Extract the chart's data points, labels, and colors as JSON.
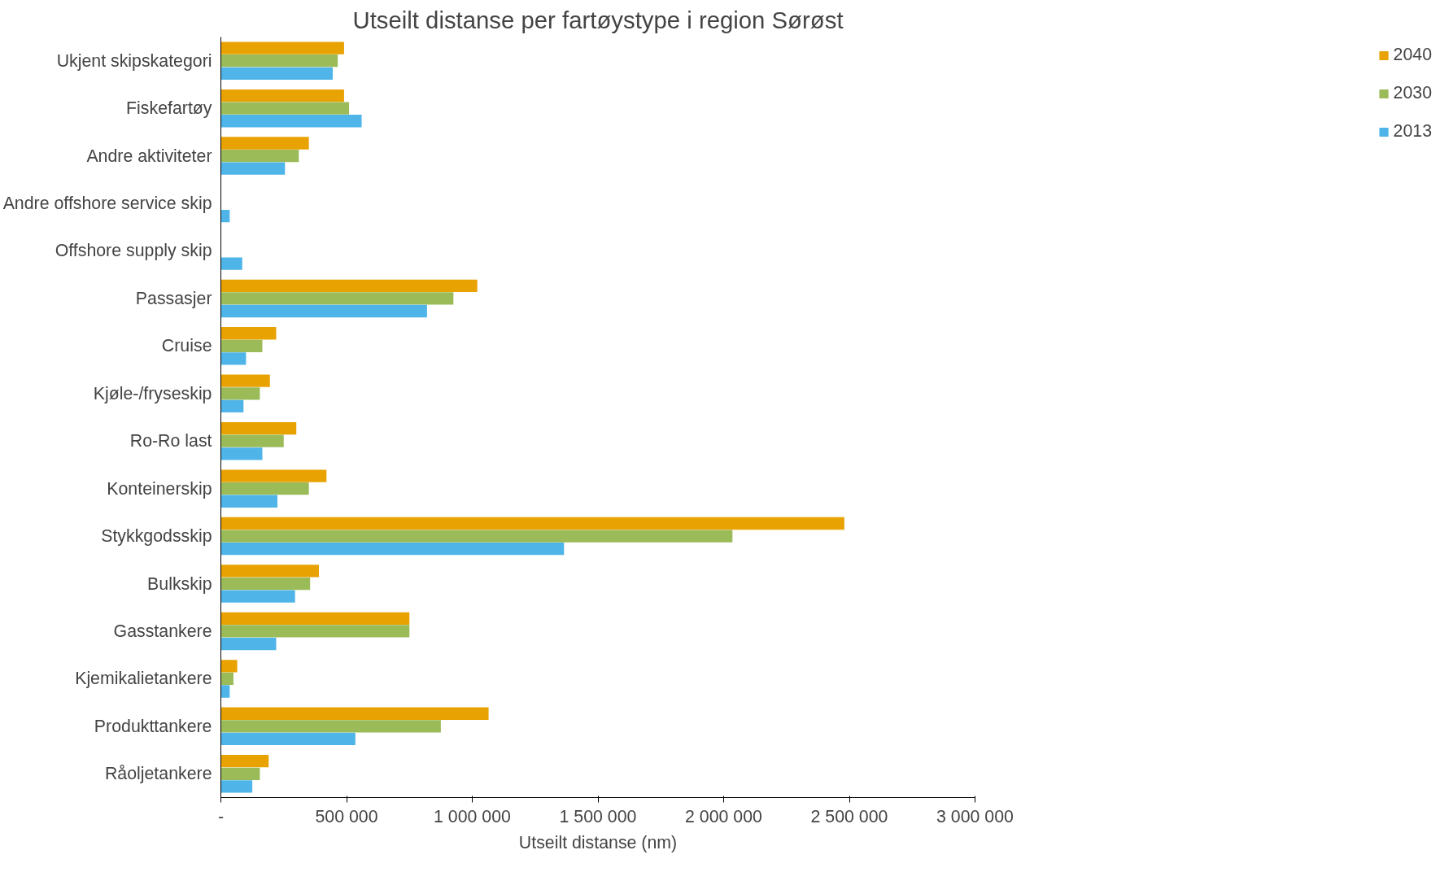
{
  "chart_data": {
    "type": "bar",
    "orientation": "horizontal",
    "title": "Utseilt distanse per fartøystype i region Sørøst",
    "xlabel": "Utseilt distanse (nm)",
    "categories": [
      "Ukjent skipskategori",
      "Fiskefartøy",
      "Andre aktiviteter",
      "Andre offshore service skip",
      "Offshore supply skip",
      "Passasjer",
      "Cruise",
      "Kjøle-/fryseskip",
      "Ro-Ro last",
      "Konteinerskip",
      "Stykkgodsskip",
      "Bulkskip",
      "Gasstankere",
      "Kjemikalietankere",
      "Produkttankere",
      "Råoljetankere"
    ],
    "series": [
      {
        "name": "2040",
        "color": "#e8a202",
        "values": [
          490000,
          490000,
          350000,
          0,
          0,
          1020000,
          220000,
          195000,
          300000,
          420000,
          2480000,
          390000,
          750000,
          65000,
          1065000,
          190000
        ]
      },
      {
        "name": "2030",
        "color": "#9bbb59",
        "values": [
          465000,
          510000,
          310000,
          0,
          0,
          925000,
          165000,
          155000,
          250000,
          350000,
          2035000,
          355000,
          750000,
          50000,
          875000,
          155000
        ]
      },
      {
        "name": "2013",
        "color": "#4fb4e8",
        "values": [
          445000,
          560000,
          255000,
          35000,
          85000,
          820000,
          100000,
          90000,
          165000,
          225000,
          1365000,
          295000,
          220000,
          35000,
          535000,
          125000
        ]
      }
    ],
    "xlim": [
      0,
      3000000
    ],
    "xticks": [
      {
        "value": 0,
        "label": "-"
      },
      {
        "value": 500000,
        "label": "500 000"
      },
      {
        "value": 1000000,
        "label": "1 000 000"
      },
      {
        "value": 1500000,
        "label": "1 500 000"
      },
      {
        "value": 2000000,
        "label": "2 000 000"
      },
      {
        "value": 2500000,
        "label": "2 500 000"
      },
      {
        "value": 3000000,
        "label": "3 000 000"
      }
    ],
    "grid": false,
    "legend": "right"
  }
}
